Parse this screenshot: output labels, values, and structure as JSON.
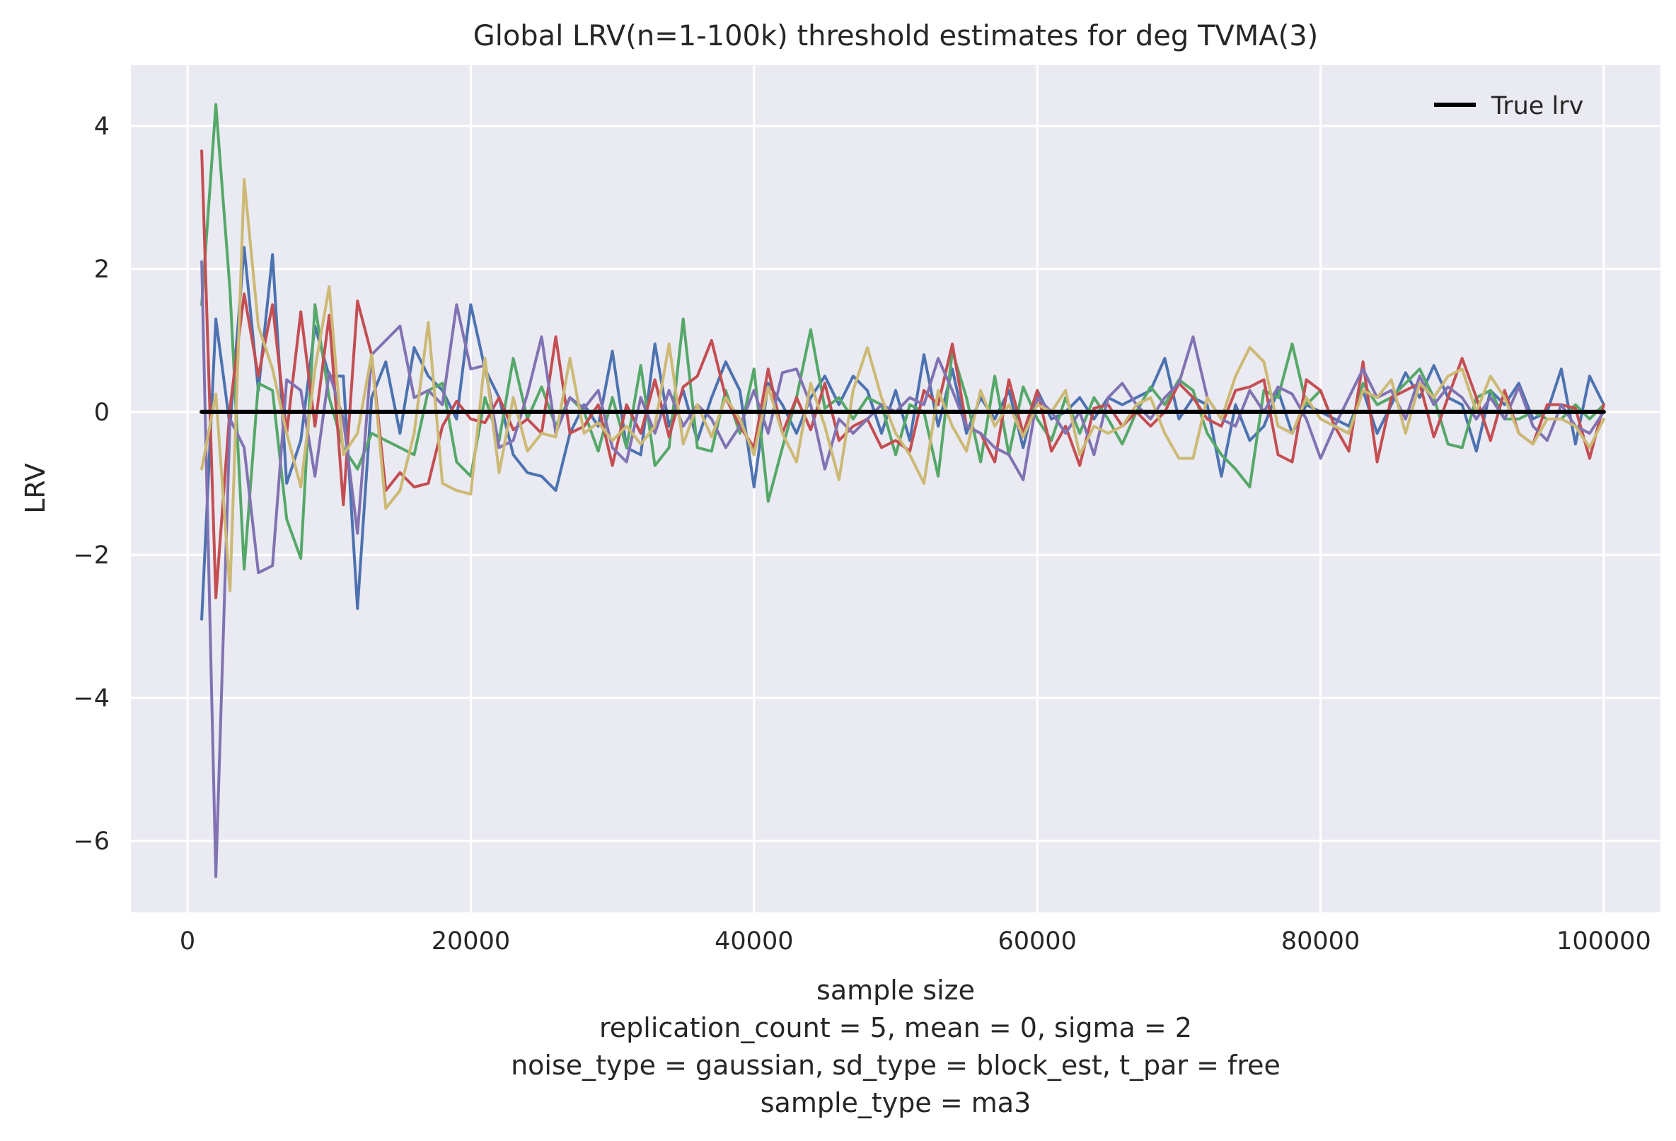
{
  "chart_data": {
    "type": "line",
    "title": "Global LRV(n=1-100k) threshold estimates for deg TVMA(3)",
    "ylabel": "LRV",
    "xlabel_lines": [
      "sample size",
      "replication_count = 5, mean = 0, sigma = 2",
      "noise_type = gaussian, sd_type = block_est, t_par = free",
      "sample_type = ma3"
    ],
    "xlim": [
      -4000,
      104000
    ],
    "ylim": [
      -7.0,
      4.85
    ],
    "x_ticks": [
      0,
      20000,
      40000,
      60000,
      80000,
      100000
    ],
    "x_tick_labels": [
      "0",
      "20000",
      "40000",
      "60000",
      "80000",
      "100000"
    ],
    "y_ticks": [
      4,
      2,
      0,
      -2,
      -4,
      -6
    ],
    "y_tick_labels": [
      "4",
      "2",
      "0",
      "−2",
      "−4",
      "−6"
    ],
    "grid": true,
    "legend_position": "top-right",
    "x": [
      1000,
      2000,
      3000,
      4000,
      5000,
      6000,
      7000,
      8000,
      9000,
      10000,
      11000,
      12000,
      13000,
      14000,
      15000,
      16000,
      17000,
      18000,
      19000,
      20000,
      21000,
      22000,
      23000,
      24000,
      25000,
      26000,
      27000,
      28000,
      29000,
      30000,
      31000,
      32000,
      33000,
      34000,
      35000,
      36000,
      37000,
      38000,
      39000,
      40000,
      41000,
      42000,
      43000,
      44000,
      45000,
      46000,
      47000,
      48000,
      49000,
      50000,
      51000,
      52000,
      53000,
      54000,
      55000,
      56000,
      57000,
      58000,
      59000,
      60000,
      61000,
      62000,
      63000,
      64000,
      65000,
      66000,
      67000,
      68000,
      69000,
      70000,
      71000,
      72000,
      73000,
      74000,
      75000,
      76000,
      77000,
      78000,
      79000,
      80000,
      81000,
      82000,
      83000,
      84000,
      85000,
      86000,
      87000,
      88000,
      89000,
      90000,
      91000,
      92000,
      93000,
      94000,
      95000,
      96000,
      97000,
      98000,
      99000,
      100000
    ],
    "series": [
      {
        "color": "#4c72b0",
        "values": [
          -2.9,
          1.3,
          -0.2,
          2.3,
          0.3,
          2.2,
          -1.0,
          -0.4,
          1.2,
          0.5,
          0.5,
          -2.75,
          0.2,
          0.7,
          -0.3,
          0.9,
          0.5,
          0.3,
          -0.1,
          1.5,
          0.6,
          0.2,
          -0.6,
          -0.85,
          -0.9,
          -1.1,
          -0.3,
          0.1,
          -0.2,
          0.85,
          -0.5,
          -0.6,
          0.95,
          -0.2,
          0.3,
          -0.4,
          0.2,
          0.7,
          0.3,
          -1.05,
          0.4,
          0.1,
          -0.3,
          0.2,
          0.5,
          0.1,
          0.5,
          0.3,
          -0.3,
          0.3,
          -0.4,
          0.8,
          -0.2,
          0.6,
          -0.3,
          0.2,
          -0.1,
          0.3,
          -0.5,
          0.3,
          -0.1,
          0.0,
          0.2,
          -0.1,
          0.2,
          0.1,
          0.2,
          0.3,
          0.75,
          -0.1,
          0.2,
          0.1,
          -0.9,
          0.1,
          -0.4,
          -0.2,
          0.3,
          -0.3,
          0.1,
          0.0,
          -0.1,
          -0.2,
          0.3,
          -0.3,
          0.1,
          0.55,
          0.2,
          0.65,
          0.2,
          0.1,
          -0.55,
          0.3,
          0.1,
          0.4,
          -0.1,
          0.0,
          0.6,
          -0.45,
          0.5,
          0.1
        ]
      },
      {
        "color": "#55a868",
        "values": [
          1.5,
          4.3,
          1.7,
          -2.2,
          0.4,
          0.3,
          -1.5,
          -2.05,
          1.5,
          0.2,
          -0.5,
          -0.8,
          -0.3,
          -0.4,
          -0.5,
          -0.6,
          0.3,
          0.4,
          -0.7,
          -0.9,
          0.2,
          -0.4,
          0.75,
          -0.1,
          0.35,
          -0.2,
          0.2,
          0.0,
          -0.55,
          0.2,
          -0.5,
          0.65,
          -0.75,
          -0.5,
          1.3,
          -0.5,
          -0.55,
          0.3,
          -0.3,
          0.6,
          -1.25,
          -0.5,
          0.2,
          1.15,
          0.05,
          0.2,
          -0.1,
          0.2,
          0.1,
          -0.6,
          0.1,
          0.0,
          -0.9,
          0.85,
          0.2,
          -0.7,
          0.5,
          -0.6,
          0.35,
          -0.1,
          -0.4,
          0.2,
          -0.3,
          0.2,
          -0.1,
          -0.45,
          0.0,
          0.35,
          0.1,
          0.45,
          0.3,
          -0.3,
          -0.6,
          -0.8,
          -1.05,
          0.3,
          0.2,
          0.95,
          0.1,
          0.3,
          -0.2,
          -0.3,
          0.4,
          0.1,
          0.2,
          0.4,
          0.6,
          0.2,
          -0.45,
          -0.5,
          0.2,
          0.3,
          -0.1,
          -0.1,
          0.0,
          -0.1,
          -0.1,
          0.1,
          -0.1,
          0.1
        ]
      },
      {
        "color": "#c44e52",
        "values": [
          3.65,
          -2.6,
          0.05,
          1.65,
          0.5,
          1.5,
          -0.3,
          1.4,
          -0.2,
          1.35,
          -1.3,
          1.55,
          0.8,
          -1.1,
          -0.85,
          -1.05,
          -1.0,
          -0.2,
          0.15,
          -0.1,
          -0.15,
          0.2,
          -0.25,
          -0.1,
          -0.3,
          1.05,
          -0.3,
          -0.2,
          0.1,
          -0.75,
          0.1,
          -0.3,
          0.45,
          -0.35,
          0.35,
          0.5,
          1.0,
          0.2,
          -0.2,
          -0.5,
          0.6,
          -0.3,
          0.2,
          -0.25,
          0.4,
          -0.4,
          -0.2,
          -0.1,
          -0.5,
          -0.4,
          -0.55,
          0.3,
          0.1,
          0.95,
          -0.2,
          -0.3,
          -0.7,
          0.45,
          -0.3,
          0.3,
          -0.55,
          -0.2,
          -0.75,
          0.05,
          0.1,
          -0.2,
          0.0,
          -0.2,
          0.0,
          0.4,
          0.2,
          -0.1,
          -0.2,
          0.3,
          0.35,
          0.45,
          -0.6,
          -0.7,
          0.45,
          0.3,
          -0.2,
          -0.55,
          0.7,
          -0.7,
          0.2,
          0.3,
          0.4,
          -0.35,
          0.2,
          0.75,
          0.2,
          -0.4,
          0.3,
          -0.3,
          -0.45,
          0.1,
          0.1,
          0.05,
          -0.65,
          0.1
        ]
      },
      {
        "color": "#8172b2",
        "values": [
          2.1,
          -6.5,
          -0.1,
          -0.5,
          -2.25,
          -2.15,
          0.45,
          0.3,
          -0.9,
          0.55,
          -0.1,
          -1.7,
          0.8,
          1.0,
          1.2,
          0.2,
          0.3,
          0.1,
          1.5,
          0.6,
          0.65,
          -0.5,
          -0.4,
          0.25,
          1.05,
          -0.3,
          0.2,
          0.05,
          0.3,
          -0.5,
          -0.7,
          0.2,
          -0.3,
          0.3,
          -0.2,
          0.1,
          -0.1,
          -0.5,
          -0.2,
          0.3,
          -0.3,
          0.55,
          0.6,
          0.1,
          -0.8,
          -0.1,
          -0.3,
          -0.1,
          0.1,
          0.0,
          0.2,
          0.1,
          0.75,
          0.3,
          -0.2,
          -0.3,
          -0.5,
          -0.6,
          -0.95,
          0.2,
          0.0,
          -0.3,
          0.0,
          -0.6,
          0.2,
          0.4,
          0.1,
          -0.1,
          0.2,
          0.4,
          1.05,
          0.2,
          -0.1,
          -0.2,
          0.3,
          0.0,
          0.35,
          0.25,
          -0.1,
          -0.65,
          -0.2,
          0.2,
          0.6,
          0.2,
          0.3,
          -0.1,
          0.5,
          0.1,
          0.35,
          0.2,
          -0.1,
          0.2,
          -0.1,
          0.35,
          -0.2,
          -0.4,
          0.1,
          -0.2,
          -0.3,
          0.0
        ]
      },
      {
        "color": "#ccb974",
        "values": [
          -0.8,
          0.25,
          -2.5,
          3.25,
          1.2,
          0.6,
          -0.3,
          -1.05,
          0.6,
          1.75,
          -0.6,
          -0.3,
          0.8,
          -1.35,
          -1.1,
          -0.3,
          1.25,
          -1.0,
          -1.1,
          -1.15,
          0.75,
          -0.85,
          0.2,
          -0.55,
          -0.3,
          -0.35,
          0.75,
          -0.3,
          -0.15,
          -0.4,
          -0.2,
          -0.45,
          -0.2,
          0.95,
          -0.45,
          0.1,
          -0.35,
          0.2,
          -0.1,
          -0.6,
          0.35,
          -0.3,
          -0.7,
          0.4,
          -0.2,
          -0.95,
          0.3,
          0.9,
          0.2,
          -0.3,
          -0.6,
          -1.0,
          0.3,
          -0.2,
          -0.55,
          0.3,
          -0.2,
          0.1,
          -0.35,
          0.1,
          0.0,
          0.3,
          -0.6,
          -0.2,
          -0.3,
          -0.2,
          0.1,
          0.2,
          -0.3,
          -0.65,
          -0.65,
          0.2,
          -0.1,
          0.5,
          0.9,
          0.7,
          -0.2,
          -0.3,
          0.2,
          -0.1,
          -0.2,
          -0.3,
          0.3,
          0.2,
          0.45,
          -0.3,
          0.4,
          0.2,
          0.5,
          0.6,
          0.0,
          0.5,
          0.2,
          -0.3,
          -0.45,
          -0.1,
          -0.1,
          -0.2,
          -0.5,
          -0.1
        ]
      },
      {
        "name": "True lrv",
        "color": "#000000",
        "values": [
          0,
          0,
          0,
          0,
          0,
          0,
          0,
          0,
          0,
          0,
          0,
          0,
          0,
          0,
          0,
          0,
          0,
          0,
          0,
          0,
          0,
          0,
          0,
          0,
          0,
          0,
          0,
          0,
          0,
          0,
          0,
          0,
          0,
          0,
          0,
          0,
          0,
          0,
          0,
          0,
          0,
          0,
          0,
          0,
          0,
          0,
          0,
          0,
          0,
          0,
          0,
          0,
          0,
          0,
          0,
          0,
          0,
          0,
          0,
          0,
          0,
          0,
          0,
          0,
          0,
          0,
          0,
          0,
          0,
          0,
          0,
          0,
          0,
          0,
          0,
          0,
          0,
          0,
          0,
          0,
          0,
          0,
          0,
          0,
          0,
          0,
          0,
          0,
          0,
          0,
          0,
          0,
          0,
          0,
          0,
          0,
          0,
          0,
          0,
          0
        ]
      }
    ],
    "legend_entries": [
      "True lrv"
    ]
  },
  "colors": {
    "plot_background": "#eaeaf2",
    "grid": "#ffffff",
    "text": "#262626"
  }
}
